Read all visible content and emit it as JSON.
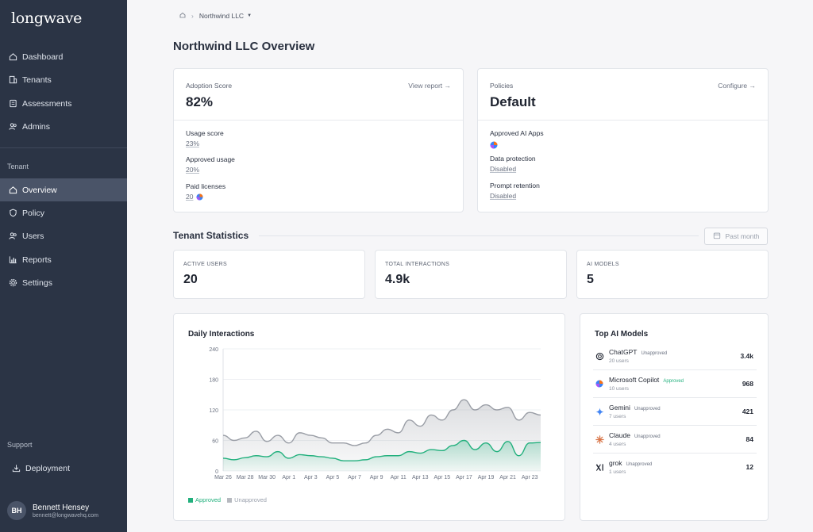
{
  "brand": {
    "logo": "longwave"
  },
  "sidebar": {
    "main_items": [
      {
        "label": "Dashboard",
        "icon": "home-icon"
      },
      {
        "label": "Tenants",
        "icon": "building-icon"
      },
      {
        "label": "Assessments",
        "icon": "document-icon"
      },
      {
        "label": "Admins",
        "icon": "users-icon"
      }
    ],
    "tenant_section_label": "Tenant",
    "tenant_items": [
      {
        "label": "Overview",
        "icon": "home-icon",
        "active": true
      },
      {
        "label": "Policy",
        "icon": "shield-icon"
      },
      {
        "label": "Users",
        "icon": "users-icon"
      },
      {
        "label": "Reports",
        "icon": "bar-chart-icon"
      },
      {
        "label": "Settings",
        "icon": "gear-icon"
      }
    ],
    "support_section_label": "Support",
    "support_items": [
      {
        "label": "Deployment",
        "icon": "download-icon"
      }
    ],
    "user": {
      "initials": "BH",
      "name": "Bennett Hensey",
      "email": "bennett@longwavehq.com"
    }
  },
  "breadcrumb": {
    "tenant": "Northwind LLC"
  },
  "page": {
    "title": "Northwind LLC Overview"
  },
  "adoption": {
    "label": "Adoption Score",
    "link": "View report →",
    "score": "82%",
    "usage_label": "Usage score",
    "usage_value": "23%",
    "approved_label": "Approved usage",
    "approved_value": "20%",
    "paid_label": "Paid licenses",
    "paid_value": "20"
  },
  "policies": {
    "label": "Policies",
    "link": "Configure →",
    "value": "Default",
    "apps_label": "Approved AI Apps",
    "dp_label": "Data protection",
    "dp_value": "Disabled",
    "pr_label": "Prompt retention",
    "pr_value": "Disabled"
  },
  "stats_section": {
    "title": "Tenant Statistics",
    "date_filter": "Past month"
  },
  "stats": [
    {
      "label": "ACTIVE USERS",
      "value": "20"
    },
    {
      "label": "TOTAL INTERACTIONS",
      "value": "4.9k"
    },
    {
      "label": "AI MODELS",
      "value": "5"
    }
  ],
  "chart_data": {
    "type": "area",
    "title": "Daily Interactions",
    "x": [
      "Mar 26",
      "Mar 27",
      "Mar 28",
      "Mar 29",
      "Mar 30",
      "Mar 31",
      "Apr 1",
      "Apr 2",
      "Apr 3",
      "Apr 4",
      "Apr 5",
      "Apr 6",
      "Apr 7",
      "Apr 8",
      "Apr 9",
      "Apr 10",
      "Apr 11",
      "Apr 12",
      "Apr 13",
      "Apr 14",
      "Apr 15",
      "Apr 16",
      "Apr 17",
      "Apr 18",
      "Apr 19",
      "Apr 20",
      "Apr 21",
      "Apr 22",
      "Apr 23",
      "Apr 24"
    ],
    "x_tick_labels": [
      "Mar 26",
      "Mar 28",
      "Mar 30",
      "Apr 1",
      "Apr 3",
      "Apr 5",
      "Apr 7",
      "Apr 9",
      "Apr 11",
      "Apr 13",
      "Apr 15",
      "Apr 17",
      "Apr 19",
      "Apr 21",
      "Apr 23"
    ],
    "y_ticks": [
      0,
      60,
      120,
      180,
      240
    ],
    "ylim": [
      0,
      240
    ],
    "series": [
      {
        "name": "Approved",
        "color": "#22b07d",
        "values": [
          25,
          22,
          26,
          30,
          28,
          38,
          25,
          32,
          30,
          28,
          25,
          20,
          20,
          22,
          28,
          30,
          30,
          38,
          35,
          42,
          40,
          50,
          60,
          42,
          55,
          38,
          58,
          30,
          55,
          56
        ]
      },
      {
        "name": "Unapproved",
        "color": "#9a9ea6",
        "values": [
          70,
          60,
          65,
          78,
          58,
          70,
          55,
          75,
          70,
          65,
          55,
          55,
          50,
          55,
          70,
          82,
          75,
          100,
          88,
          110,
          100,
          120,
          140,
          120,
          130,
          120,
          125,
          100,
          115,
          110
        ]
      }
    ],
    "legend": "bottom-left"
  },
  "top_models": {
    "title": "Top AI Models",
    "items": [
      {
        "name": "ChatGPT",
        "status": "Unapproved",
        "users": "20 users",
        "count": "3.4k",
        "icon": "openai-icon"
      },
      {
        "name": "Microsoft Copilot",
        "status": "Approved",
        "users": "10 users",
        "count": "968",
        "icon": "copilot-icon"
      },
      {
        "name": "Gemini",
        "status": "Unapproved",
        "users": "7 users",
        "count": "421",
        "icon": "gemini-icon"
      },
      {
        "name": "Claude",
        "status": "Unapproved",
        "users": "4 users",
        "count": "84",
        "icon": "claude-icon"
      },
      {
        "name": "grok",
        "status": "Unapproved",
        "users": "1 users",
        "count": "12",
        "icon": "grok-icon"
      }
    ]
  },
  "colors": {
    "approved": "#22b07d",
    "unapproved_badge": "#6a7180",
    "sidebar": "#2b3445"
  }
}
